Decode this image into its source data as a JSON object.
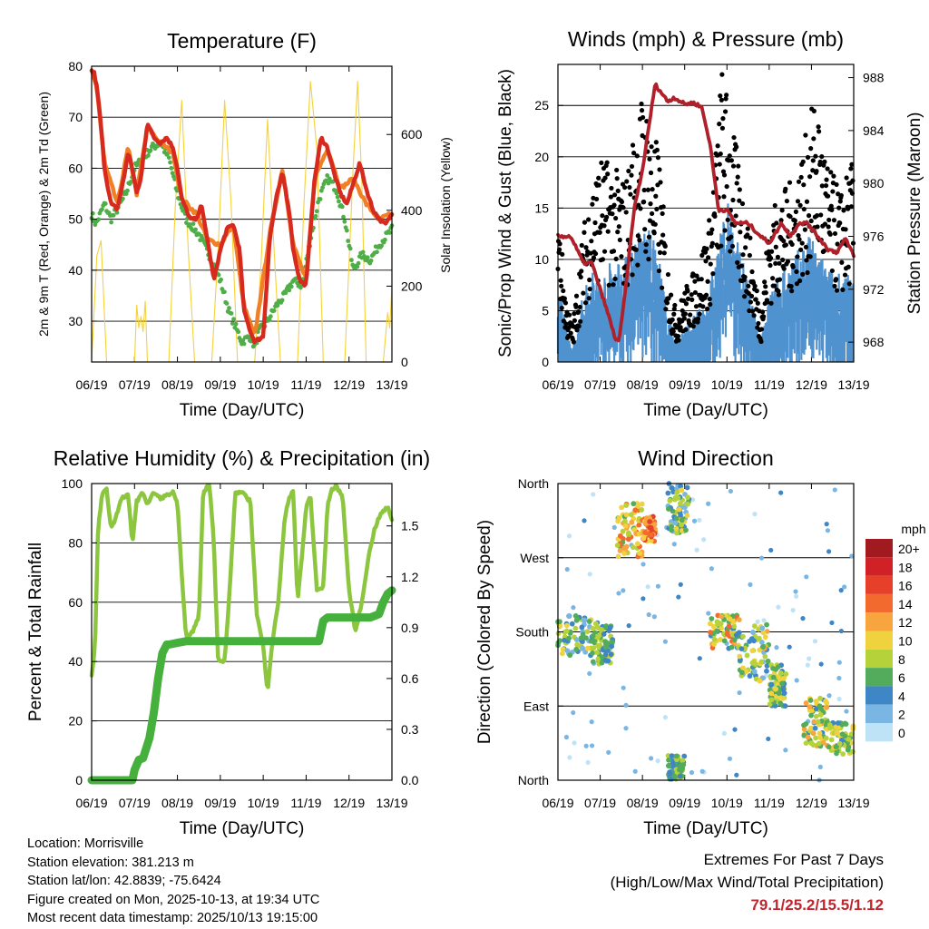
{
  "chart_data": [
    {
      "id": "temperature",
      "type": "line",
      "title": "Temperature (F)",
      "xlabel": "Time (Day/UTC)",
      "ylabel": "2m & 9m T (Red, Orange) & 2m Td (Green)",
      "y2label": "Solar Insolation (Yellow)",
      "x_ticks": [
        "06/19",
        "07/19",
        "08/19",
        "09/19",
        "10/19",
        "11/19",
        "12/19",
        "13/19"
      ],
      "ylim": [
        22,
        80
      ],
      "y_ticks": [
        30,
        40,
        50,
        60,
        70,
        80
      ],
      "y2lim": [
        0,
        780
      ],
      "y2_ticks": [
        0,
        200,
        400,
        600
      ],
      "series": [
        {
          "name": "2m T",
          "color": "#d62a1e",
          "x": [
            0,
            0.05,
            0.12,
            0.2,
            0.3,
            0.45,
            0.6,
            0.75,
            0.85,
            0.95,
            1.05,
            1.15,
            1.3,
            1.45,
            1.6,
            1.75,
            1.9,
            2.0,
            2.1,
            2.3,
            2.45,
            2.55,
            2.7,
            2.85,
            3.0,
            3.15,
            3.3,
            3.45,
            3.55,
            3.7,
            3.8,
            4.0,
            4.15,
            4.3,
            4.45,
            4.6,
            4.7,
            4.85,
            5.0,
            5.1,
            5.2,
            5.35,
            5.5,
            5.65,
            5.8,
            5.95,
            6.1,
            6.25,
            6.4,
            6.55,
            6.7,
            6.85,
            7.0
          ],
          "values": [
            79,
            79,
            76,
            70,
            60,
            53,
            52,
            58,
            63,
            60,
            55,
            58,
            69,
            66,
            65,
            66,
            64,
            60,
            54,
            50,
            50,
            53,
            46,
            38,
            44,
            48,
            49,
            44,
            32,
            28,
            26,
            27,
            46,
            54,
            59,
            52,
            44,
            38,
            37,
            48,
            58,
            66,
            64,
            59,
            55,
            53,
            57,
            61,
            56,
            52,
            50,
            49,
            51
          ]
        },
        {
          "name": "9m T",
          "color": "#f07f26",
          "x": [
            0,
            0.12,
            0.3,
            0.6,
            0.85,
            1.05,
            1.3,
            1.6,
            1.9,
            2.1,
            2.45,
            2.7,
            3.0,
            3.3,
            3.55,
            3.8,
            4.15,
            4.45,
            4.7,
            5.0,
            5.2,
            5.5,
            5.8,
            6.1,
            6.4,
            6.7,
            7.0
          ],
          "values": [
            79,
            76,
            61,
            53,
            64,
            55,
            68,
            65,
            63,
            54,
            51,
            46,
            45,
            49,
            33,
            27,
            47,
            60,
            45,
            38,
            58,
            64,
            56,
            58,
            53,
            50,
            51
          ]
        },
        {
          "name": "2m Td",
          "color": "#4fae47",
          "x": [
            0,
            0.1,
            0.3,
            0.45,
            0.6,
            0.8,
            1.0,
            1.2,
            1.4,
            1.6,
            1.8,
            2.0,
            2.2,
            2.5,
            2.8,
            3.0,
            3.2,
            3.5,
            3.7,
            3.8,
            3.9,
            4.1,
            4.3,
            4.5,
            4.7,
            4.9,
            5.1,
            5.3,
            5.5,
            5.7,
            5.9,
            6.1,
            6.3,
            6.5,
            6.7,
            7.0
          ],
          "values": [
            51,
            49,
            53,
            50,
            52,
            55,
            60,
            62,
            64,
            65,
            62,
            55,
            50,
            47,
            42,
            38,
            32,
            26,
            27,
            25,
            28,
            30,
            33,
            35,
            38,
            37,
            46,
            54,
            58,
            56,
            50,
            40,
            43,
            42,
            45,
            48
          ]
        },
        {
          "name": "Solar Insolation",
          "color": "#f5d13b",
          "axis": "y2",
          "x": [
            0,
            0.12,
            0.22,
            0.35,
            1.0,
            1.05,
            1.1,
            1.15,
            1.2,
            1.25,
            1.3,
            1.8,
            1.95,
            2.1,
            2.25,
            2.4,
            2.8,
            2.95,
            3.1,
            3.25,
            3.4,
            3.8,
            3.95,
            4.1,
            4.25,
            4.4,
            4.8,
            4.95,
            5.1,
            5.25,
            5.4,
            5.9,
            6.1,
            6.2,
            6.3,
            6.4,
            6.8,
            6.9,
            6.95,
            7.0
          ],
          "values": [
            0,
            280,
            320,
            0,
            0,
            150,
            90,
            120,
            80,
            160,
            0,
            0,
            410,
            690,
            300,
            0,
            0,
            300,
            690,
            420,
            0,
            0,
            260,
            640,
            300,
            0,
            0,
            420,
            740,
            560,
            0,
            0,
            520,
            740,
            470,
            0,
            0,
            130,
            90,
            200
          ]
        }
      ]
    },
    {
      "id": "winds",
      "type": "scatter",
      "title": "Winds (mph) & Pressure (mb)",
      "xlabel": "Time (Day/UTC)",
      "ylabel": "Sonic/Prop Wind & Gust (Blue, Black)",
      "y2label": "Station Pressure (Maroon)",
      "x_ticks": [
        "06/19",
        "07/19",
        "08/19",
        "09/19",
        "10/19",
        "11/19",
        "12/19",
        "13/19"
      ],
      "ylim": [
        0,
        29
      ],
      "y_ticks": [
        0,
        5,
        10,
        15,
        20,
        25
      ],
      "y2lim": [
        966.5,
        989.0
      ],
      "y2_ticks": [
        968,
        972,
        976,
        980,
        984,
        988
      ],
      "series": [
        {
          "name": "Wind speed (envelope)",
          "color": "#4f92cf",
          "x": [
            0,
            0.2,
            0.35,
            0.6,
            0.8,
            1.0,
            1.3,
            1.6,
            2.0,
            2.2,
            2.4,
            2.6,
            2.8,
            3.0,
            3.2,
            3.5,
            3.9,
            4.0,
            4.3,
            4.6,
            4.8,
            5.0,
            5.3,
            5.6,
            5.9,
            6.1,
            6.4,
            6.7,
            7.0
          ],
          "values": [
            8,
            3,
            1,
            6,
            8,
            7,
            9,
            9,
            12,
            11,
            9,
            4,
            2,
            3,
            4,
            5,
            12,
            14,
            10,
            5,
            2,
            6,
            8,
            9,
            11,
            10,
            8,
            8,
            7
          ]
        },
        {
          "name": "Wind gust (envelope)",
          "color": "#000000",
          "x": [
            0,
            0.2,
            0.35,
            0.6,
            0.8,
            1.0,
            1.3,
            1.6,
            1.9,
            2.0,
            2.2,
            2.4,
            2.6,
            2.8,
            3.0,
            3.3,
            3.6,
            3.9,
            4.0,
            4.3,
            4.6,
            4.8,
            5.0,
            5.3,
            5.6,
            5.9,
            6.1,
            6.4,
            6.7,
            7.0
          ],
          "values": [
            13,
            5,
            3,
            11,
            15,
            17,
            16,
            15,
            21,
            22,
            20,
            17,
            8,
            4,
            6,
            8,
            12,
            25,
            22,
            16,
            9,
            4,
            12,
            14,
            15,
            19,
            22,
            16,
            14,
            17
          ]
        },
        {
          "name": "Station Pressure",
          "color": "#b0202a",
          "axis": "y2",
          "x": [
            0,
            0.3,
            0.6,
            0.8,
            1.0,
            1.2,
            1.35,
            1.45,
            1.6,
            1.8,
            2.0,
            2.3,
            2.6,
            2.75,
            3.0,
            3.2,
            3.4,
            3.6,
            3.8,
            4.0,
            4.2,
            4.5,
            4.8,
            5.0,
            5.3,
            5.5,
            5.7,
            5.9,
            6.1,
            6.4,
            6.6,
            6.8,
            7.0
          ],
          "values": [
            976,
            976,
            974,
            974,
            972,
            970,
            968.3,
            968.1,
            972,
            978,
            981,
            987.5,
            986.2,
            986.5,
            986.0,
            986.1,
            985.8,
            983,
            978,
            978,
            977,
            977,
            976,
            975.5,
            977,
            976,
            977,
            977,
            976.2,
            975,
            974.8,
            975.8,
            974.6
          ]
        }
      ]
    },
    {
      "id": "humidity",
      "type": "line",
      "title": "Relative Humidity (%) & Precipitation (in)",
      "xlabel": "Time (Day/UTC)",
      "ylabel": "Percent & Total Rainfall",
      "x_ticks": [
        "06/19",
        "07/19",
        "08/19",
        "09/19",
        "10/19",
        "11/19",
        "12/19",
        "13/19"
      ],
      "ylim": [
        0,
        100
      ],
      "y_ticks": [
        0,
        20,
        40,
        60,
        80,
        100
      ],
      "y2lim": [
        0,
        1.75
      ],
      "y2_ticks": [
        "0.0",
        "0.3",
        "0.6",
        "0.9",
        "1.2",
        "1.5"
      ],
      "series": [
        {
          "name": "Relative Humidity",
          "color": "#8cc63f",
          "x": [
            0,
            0.08,
            0.15,
            0.25,
            0.35,
            0.45,
            0.55,
            0.7,
            0.85,
            0.95,
            1.05,
            1.2,
            1.3,
            1.45,
            1.6,
            1.75,
            1.9,
            2.0,
            2.1,
            2.2,
            2.35,
            2.5,
            2.6,
            2.75,
            2.85,
            2.95,
            3.1,
            3.2,
            3.35,
            3.5,
            3.7,
            3.85,
            4.0,
            4.1,
            4.2,
            4.35,
            4.5,
            4.6,
            4.7,
            4.8,
            4.9,
            5.0,
            5.1,
            5.25,
            5.4,
            5.5,
            5.6,
            5.7,
            5.85,
            6.0,
            6.15,
            6.3,
            6.45,
            6.6,
            6.75,
            6.9,
            7.0
          ],
          "values": [
            35,
            45,
            85,
            97,
            98,
            85,
            88,
            95,
            96,
            80,
            94,
            97,
            93,
            97,
            95,
            96,
            97,
            93,
            70,
            48,
            50,
            55,
            97,
            100,
            80,
            40,
            40,
            60,
            97,
            97,
            94,
            56,
            45,
            30,
            45,
            60,
            88,
            95,
            98,
            60,
            75,
            92,
            96,
            64,
            65,
            93,
            98,
            99,
            96,
            64,
            50,
            60,
            75,
            85,
            90,
            92,
            88
          ]
        },
        {
          "name": "Total Rainfall",
          "color": "#45b03c",
          "axis": "y2",
          "x": [
            0,
            0.95,
            1.0,
            1.1,
            1.2,
            1.35,
            1.45,
            1.55,
            1.65,
            1.75,
            1.8,
            2.0,
            2.2,
            4.0,
            5.0,
            5.3,
            5.4,
            5.5,
            6.5,
            6.7,
            6.8,
            6.9,
            7.0
          ],
          "values": [
            0,
            0,
            0.06,
            0.12,
            0.13,
            0.25,
            0.4,
            0.6,
            0.75,
            0.8,
            0.8,
            0.81,
            0.82,
            0.82,
            0.82,
            0.82,
            0.94,
            0.96,
            0.96,
            0.98,
            1.05,
            1.1,
            1.12
          ]
        }
      ]
    },
    {
      "id": "direction",
      "type": "scatter",
      "title": "Wind Direction",
      "xlabel": "Time (Day/UTC)",
      "ylabel": "Direction (Colored By Speed)",
      "x_ticks": [
        "06/19",
        "07/19",
        "08/19",
        "09/19",
        "10/19",
        "11/19",
        "12/19",
        "13/19"
      ],
      "y_ticks": [
        "North",
        "East",
        "South",
        "West",
        "North"
      ],
      "ylim": [
        0,
        360
      ],
      "legend": {
        "title": "mph",
        "labels": [
          "20+",
          "18",
          "16",
          "14",
          "12",
          "10",
          "8",
          "6",
          "4",
          "2",
          "0"
        ],
        "colors": [
          "#a01a1f",
          "#cf2126",
          "#e6402a",
          "#f26a2e",
          "#f8a43f",
          "#f0d23e",
          "#b6d23b",
          "#52ac5c",
          "#3e86c6",
          "#7ab6e4",
          "#bfe3f6"
        ]
      },
      "clusters": [
        {
          "x": [
            0,
            0.8
          ],
          "dir": [
            150,
            200
          ],
          "speed": [
            2,
            10
          ]
        },
        {
          "x": [
            0.8,
            1.3
          ],
          "dir": [
            140,
            190
          ],
          "speed": [
            4,
            9
          ]
        },
        {
          "x": [
            1.4,
            2.0
          ],
          "dir": [
            270,
            340
          ],
          "speed": [
            6,
            14
          ]
        },
        {
          "x": [
            2.0,
            2.3
          ],
          "dir": [
            290,
            320
          ],
          "speed": [
            10,
            16
          ]
        },
        {
          "x": [
            2.6,
            3.1
          ],
          "dir": [
            300,
            360
          ],
          "speed": [
            2,
            10
          ]
        },
        {
          "x": [
            2.6,
            3.0
          ],
          "dir": [
            0,
            30
          ],
          "speed": [
            4,
            8
          ]
        },
        {
          "x": [
            3.6,
            4.3
          ],
          "dir": [
            160,
            200
          ],
          "speed": [
            4,
            14
          ]
        },
        {
          "x": [
            4.3,
            5.0
          ],
          "dir": [
            120,
            190
          ],
          "speed": [
            2,
            12
          ]
        },
        {
          "x": [
            5.0,
            5.4
          ],
          "dir": [
            90,
            140
          ],
          "speed": [
            4,
            10
          ]
        },
        {
          "x": [
            5.8,
            6.4
          ],
          "dir": [
            40,
            100
          ],
          "speed": [
            4,
            12
          ]
        },
        {
          "x": [
            6.4,
            7.0
          ],
          "dir": [
            30,
            70
          ],
          "speed": [
            4,
            10
          ]
        }
      ]
    }
  ],
  "footer": {
    "location": "Location: Morrisville",
    "elevation": "Station elevation: 381.213 m",
    "latlon": "Station lat/lon: 42.8839; -75.6424",
    "created": "Figure created on Mon, 2025-10-13, at 19:34 UTC",
    "timestamp": "Most recent data timestamp: 2025/10/13 19:15:00"
  },
  "extremes": {
    "title": "Extremes For Past 7 Days",
    "subtitle": "(High/Low/Max Wind/Total Precipitation)",
    "values": "79.1/25.2/15.5/1.12"
  }
}
